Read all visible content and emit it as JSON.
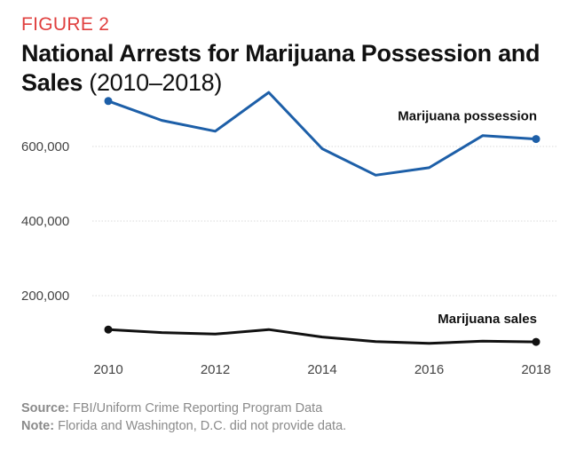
{
  "figure_label": "FIGURE 2",
  "title_bold": "National Arrests for Marijuana Possession and Sales",
  "title_light": "(2010–2018)",
  "footnotes": {
    "source_key": "Source:",
    "source_text": "FBI/Uniform Crime Reporting Program Data",
    "note_key": "Note:",
    "note_text": "Florida and Washington, D.C. did not provide data."
  },
  "chart_data": {
    "type": "line",
    "x": [
      2010,
      2011,
      2012,
      2013,
      2014,
      2015,
      2016,
      2017,
      2018
    ],
    "xticks": [
      2010,
      2012,
      2014,
      2016,
      2018
    ],
    "xtick_labels": [
      "2010",
      "2012",
      "2014",
      "2016",
      "2018"
    ],
    "yticks": [
      200000,
      400000,
      600000
    ],
    "ytick_labels": [
      "200,000",
      "400,000",
      "600,000"
    ],
    "xlim": [
      2010,
      2018
    ],
    "ylim": [
      50000,
      750000
    ],
    "grid": "horizontal",
    "series": [
      {
        "name": "Marijuana possession",
        "color": "#1d5fa8",
        "values": [
          722000,
          670000,
          641000,
          745000,
          594000,
          523000,
          543000,
          629000,
          620000
        ]
      },
      {
        "name": "Marijuana sales",
        "color": "#111111",
        "values": [
          109000,
          101000,
          97000,
          109000,
          89000,
          77000,
          72000,
          78000,
          76000
        ]
      }
    ]
  }
}
